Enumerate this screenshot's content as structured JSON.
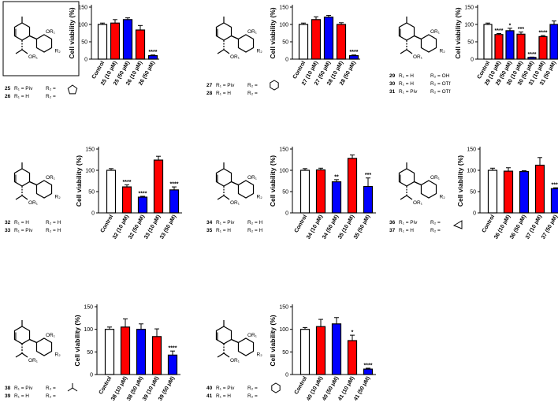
{
  "colors": {
    "control": "#ffffff",
    "red": "#ff0000",
    "blue": "#0000ff",
    "axis": "#000000"
  },
  "compound_panels": [
    {
      "ids": [
        "25",
        "26"
      ],
      "lines": [
        {
          "id": "25",
          "r1": "R₁ = Piv",
          "r2": "R₂ ="
        },
        {
          "id": "26",
          "r1": "R₁ = H",
          "r2": "R₂ ="
        }
      ],
      "substituent": "cyclopentyl"
    },
    {
      "ids": [
        "27",
        "28"
      ],
      "lines": [
        {
          "id": "27",
          "r1": "R₁ = Piv",
          "r2": "R₂ ="
        },
        {
          "id": "28",
          "r1": "R₁ = H",
          "r2": "R₂ ="
        }
      ],
      "substituent": "phenyl"
    },
    {
      "ids": [
        "29",
        "30",
        "31"
      ],
      "lines": [
        {
          "id": "29",
          "r1": "R₁ = H",
          "r2": "R₂ = OH"
        },
        {
          "id": "30",
          "r1": "R₁ = H",
          "r2": "R₂ = OTf"
        },
        {
          "id": "31",
          "r1": "R₁ = Piv",
          "r2": "R₂ = OTf"
        }
      ],
      "substituent": ""
    },
    {
      "ids": [
        "32",
        "33"
      ],
      "lines": [
        {
          "id": "32",
          "r1": "R₁ = H",
          "r2": "R₂ = H"
        },
        {
          "id": "33",
          "r1": "R₁ = Piv",
          "r2": "R₂ = H"
        }
      ],
      "substituent": ""
    },
    {
      "ids": [
        "34",
        "35"
      ],
      "lines": [
        {
          "id": "34",
          "r1": "R₁ = Piv",
          "r2": "R₂ = H"
        },
        {
          "id": "35",
          "r1": "R₁ = H",
          "r2": "R₂ = H"
        }
      ],
      "substituent": ""
    },
    {
      "ids": [
        "36",
        "37"
      ],
      "lines": [
        {
          "id": "36",
          "r1": "R₁ = Piv",
          "r2": "R₂ ="
        },
        {
          "id": "37",
          "r1": "R₁ = H",
          "r2": "R₂ ="
        }
      ],
      "substituent": "cyclopropyl"
    },
    {
      "ids": [
        "38",
        "39"
      ],
      "lines": [
        {
          "id": "38",
          "r1": "R₁ = Piv",
          "r2": "R₂ ="
        },
        {
          "id": "39",
          "r1": "R₁ = H",
          "r2": "R₂ ="
        }
      ],
      "substituent": "tert-butyl"
    },
    {
      "ids": [
        "40",
        "41"
      ],
      "lines": [
        {
          "id": "40",
          "r1": "R₁ = Piv",
          "r2": "R₂ ="
        },
        {
          "id": "41",
          "r1": "R₁ = H",
          "r2": "R₂ ="
        }
      ],
      "substituent": "cyclohexyl"
    }
  ],
  "structure_labels": {
    "or1": "OR₁",
    "r2": "R₂"
  },
  "chart_data": [
    {
      "type": "bar",
      "ylabel": "Cell viability (%)",
      "ylim": [
        0,
        150
      ],
      "yticks": [
        0,
        50,
        100,
        150
      ],
      "categories": [
        "Control",
        "25 (10 μM)",
        "25 (50 μM)",
        "26 (10 μM)",
        "26 (50 μM)"
      ],
      "values": [
        100,
        104,
        114,
        84,
        10
      ],
      "errors": [
        4,
        10,
        5,
        13,
        2
      ],
      "colors": [
        "white",
        "red",
        "blue",
        "red",
        "blue"
      ],
      "significance": [
        "",
        "",
        "",
        "",
        "****"
      ]
    },
    {
      "type": "bar",
      "ylabel": "Cell viability (%)",
      "ylim": [
        0,
        150
      ],
      "yticks": [
        0,
        50,
        100,
        150
      ],
      "categories": [
        "Control",
        "27 (10 μM)",
        "27 (50 μM)",
        "28 (10 μM)",
        "28 (50 μM)"
      ],
      "values": [
        100,
        114,
        121,
        100,
        10
      ],
      "errors": [
        4,
        8,
        5,
        5,
        2
      ],
      "colors": [
        "white",
        "red",
        "blue",
        "red",
        "blue"
      ],
      "significance": [
        "",
        "",
        "",
        "",
        "****"
      ]
    },
    {
      "type": "bar",
      "ylabel": "Cell viability (%)",
      "ylim": [
        0,
        150
      ],
      "yticks": [
        0,
        50,
        100,
        150
      ],
      "categories": [
        "Control",
        "29 (10 μM)",
        "29 (50 μM)",
        "30 (10 μM)",
        "30 (50 μM)",
        "31 (10 μM)",
        "31 (50 μM)"
      ],
      "values": [
        100,
        71,
        82,
        72,
        5,
        65,
        100
      ],
      "errors": [
        4,
        3,
        7,
        6,
        1,
        3,
        10
      ],
      "colors": [
        "white",
        "red",
        "blue",
        "red",
        "blue",
        "red",
        "blue"
      ],
      "significance": [
        "",
        "****",
        "*",
        "***",
        "****",
        "****",
        ""
      ]
    },
    {
      "type": "bar",
      "ylabel": "Cell viability (%)",
      "ylim": [
        0,
        150
      ],
      "yticks": [
        0,
        50,
        100,
        150
      ],
      "categories": [
        "Control",
        "32 (10 μM)",
        "32 (50 μM)",
        "33 (10 μM)",
        "33 (50 μM)"
      ],
      "values": [
        100,
        61,
        37,
        124,
        54
      ],
      "errors": [
        4,
        5,
        2,
        9,
        7
      ],
      "colors": [
        "white",
        "red",
        "blue",
        "red",
        "blue"
      ],
      "significance": [
        "",
        "****",
        "****",
        "",
        "****"
      ]
    },
    {
      "type": "bar",
      "ylabel": "Cell viability (%)",
      "ylim": [
        0,
        150
      ],
      "yticks": [
        0,
        50,
        100,
        150
      ],
      "categories": [
        "Control",
        "34 (10 μM)",
        "34 (50 μM)",
        "35 (10 μM)",
        "35 (50 μM)"
      ],
      "values": [
        100,
        101,
        73,
        128,
        62
      ],
      "errors": [
        4,
        4,
        5,
        8,
        20
      ],
      "colors": [
        "white",
        "red",
        "blue",
        "red",
        "blue"
      ],
      "significance": [
        "",
        "",
        "**",
        "",
        "***"
      ]
    },
    {
      "type": "bar",
      "ylabel": "Cell viability (%)",
      "ylim": [
        0,
        150
      ],
      "yticks": [
        0,
        50,
        100,
        150
      ],
      "categories": [
        "Control",
        "36 (10 μM)",
        "36 (50 μM)",
        "37 (10 μM)",
        "37 (50 μM)"
      ],
      "values": [
        100,
        98,
        97,
        112,
        57
      ],
      "errors": [
        5,
        8,
        2,
        18,
        2
      ],
      "colors": [
        "white",
        "red",
        "blue",
        "red",
        "blue"
      ],
      "significance": [
        "",
        "",
        "",
        "",
        "****"
      ]
    },
    {
      "type": "bar",
      "ylabel": "Cell viability (%)",
      "ylim": [
        0,
        150
      ],
      "yticks": [
        0,
        50,
        100,
        150
      ],
      "categories": [
        "Control",
        "38 (10 μM)",
        "38 (50 μM)",
        "39 (10 μM)",
        "39 (50 μM)"
      ],
      "values": [
        100,
        105,
        100,
        84,
        43
      ],
      "errors": [
        5,
        18,
        12,
        17,
        9
      ],
      "colors": [
        "white",
        "red",
        "blue",
        "red",
        "blue"
      ],
      "significance": [
        "",
        "",
        "",
        "",
        "****"
      ]
    },
    {
      "type": "bar",
      "ylabel": "Cell viability (%)",
      "ylim": [
        0,
        150
      ],
      "yticks": [
        0,
        50,
        100,
        150
      ],
      "categories": [
        "Control",
        "40 (10 μM)",
        "40 (50 μM)",
        "41 (10 μM)",
        "41 (50 μM)"
      ],
      "values": [
        100,
        106,
        112,
        75,
        12
      ],
      "errors": [
        4,
        16,
        14,
        12,
        2
      ],
      "colors": [
        "white",
        "red",
        "blue",
        "red",
        "blue"
      ],
      "significance": [
        "",
        "",
        "",
        "*",
        "****"
      ]
    }
  ]
}
